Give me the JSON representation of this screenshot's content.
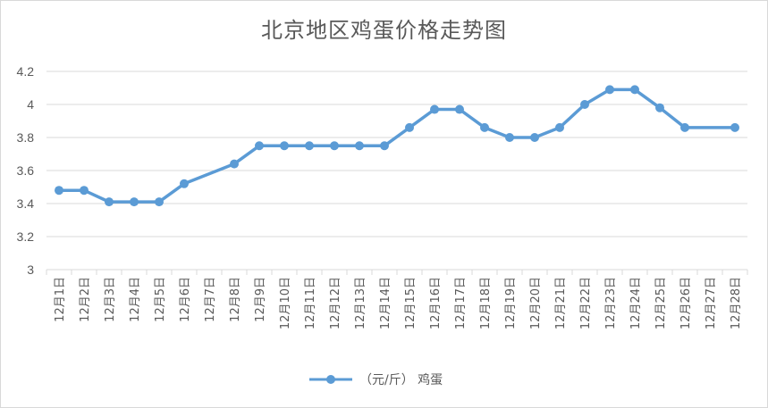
{
  "chart_data": {
    "type": "line",
    "title": "北京地区鸡蛋价格走势图",
    "xlabel": "",
    "ylabel": "",
    "ylim": [
      3,
      4.2
    ],
    "yticks": [
      "3",
      "3.2",
      "3.4",
      "3.6",
      "3.8",
      "4",
      "4.2"
    ],
    "grid": true,
    "legend_position": "bottom",
    "categories": [
      "12月1日",
      "12月2日",
      "12月3日",
      "12月4日",
      "12月5日",
      "12月6日",
      "12月7日",
      "12月8日",
      "12月9日",
      "12月10日",
      "12月11日",
      "12月12日",
      "12月13日",
      "12月14日",
      "12月15日",
      "12月16日",
      "12月17日",
      "12月18日",
      "12月19日",
      "12月20日",
      "12月21日",
      "12月22日",
      "12月23日",
      "12月24日",
      "12月25日",
      "12月26日",
      "12月27日",
      "12月28日"
    ],
    "series": [
      {
        "name": "（元/斤） 鸡蛋",
        "color": "#5b9bd5",
        "values": [
          3.48,
          3.48,
          3.41,
          3.41,
          3.41,
          3.52,
          null,
          3.64,
          3.75,
          3.75,
          3.75,
          3.75,
          3.75,
          3.75,
          3.86,
          3.97,
          3.97,
          3.86,
          3.8,
          3.8,
          3.86,
          4.0,
          4.09,
          4.09,
          3.98,
          3.86,
          null,
          3.86
        ]
      }
    ]
  }
}
